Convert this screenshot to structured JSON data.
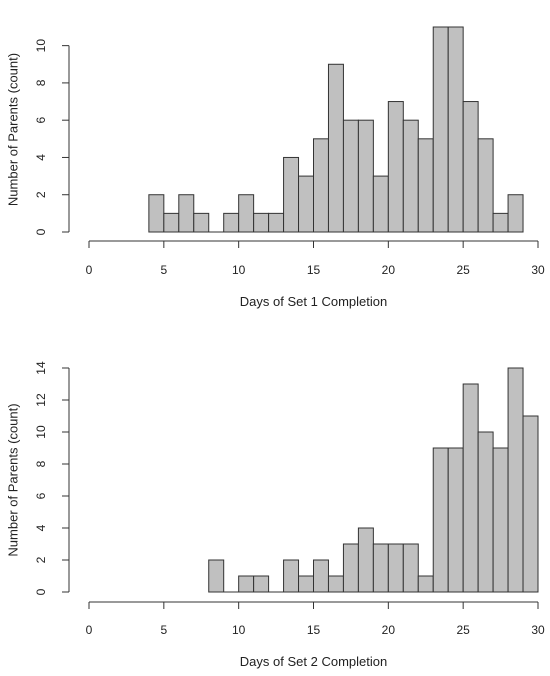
{
  "chart_data": [
    {
      "type": "bar",
      "histogram": true,
      "title": "",
      "xlabel": "Days of Set 1 Completion",
      "ylabel": "Number of Parents (count)",
      "xlim": [
        0,
        30
      ],
      "ylim": [
        0,
        11
      ],
      "xticks": [
        "0",
        "5",
        "10",
        "15",
        "20",
        "25",
        "30"
      ],
      "yticks": [
        "0",
        "2",
        "4",
        "6",
        "8",
        "10"
      ],
      "grid": false,
      "bar_color": "#c0c0c0",
      "bins": [
        {
          "start": 4,
          "end": 5,
          "count": 2
        },
        {
          "start": 5,
          "end": 6,
          "count": 1
        },
        {
          "start": 6,
          "end": 7,
          "count": 2
        },
        {
          "start": 7,
          "end": 8,
          "count": 1
        },
        {
          "start": 8,
          "end": 9,
          "count": 0
        },
        {
          "start": 9,
          "end": 10,
          "count": 1
        },
        {
          "start": 10,
          "end": 11,
          "count": 2
        },
        {
          "start": 11,
          "end": 12,
          "count": 1
        },
        {
          "start": 12,
          "end": 13,
          "count": 1
        },
        {
          "start": 13,
          "end": 14,
          "count": 4
        },
        {
          "start": 14,
          "end": 15,
          "count": 3
        },
        {
          "start": 15,
          "end": 16,
          "count": 5
        },
        {
          "start": 16,
          "end": 17,
          "count": 9
        },
        {
          "start": 17,
          "end": 18,
          "count": 6
        },
        {
          "start": 18,
          "end": 19,
          "count": 6
        },
        {
          "start": 19,
          "end": 20,
          "count": 3
        },
        {
          "start": 20,
          "end": 21,
          "count": 7
        },
        {
          "start": 21,
          "end": 22,
          "count": 6
        },
        {
          "start": 22,
          "end": 23,
          "count": 5
        },
        {
          "start": 23,
          "end": 24,
          "count": 11
        },
        {
          "start": 24,
          "end": 25,
          "count": 11
        },
        {
          "start": 25,
          "end": 26,
          "count": 7
        },
        {
          "start": 26,
          "end": 27,
          "count": 5
        },
        {
          "start": 27,
          "end": 28,
          "count": 1
        },
        {
          "start": 28,
          "end": 29,
          "count": 2
        }
      ]
    },
    {
      "type": "bar",
      "histogram": true,
      "title": "",
      "xlabel": "Days of Set 2 Completion",
      "ylabel": "Number of Parents (count)",
      "xlim": [
        0,
        30
      ],
      "ylim": [
        0,
        14
      ],
      "xticks": [
        "0",
        "5",
        "10",
        "15",
        "20",
        "25",
        "30"
      ],
      "yticks": [
        "0",
        "2",
        "4",
        "6",
        "8",
        "10",
        "12",
        "14"
      ],
      "grid": false,
      "bar_color": "#c0c0c0",
      "bins": [
        {
          "start": 8,
          "end": 9,
          "count": 2
        },
        {
          "start": 9,
          "end": 10,
          "count": 0
        },
        {
          "start": 10,
          "end": 11,
          "count": 1
        },
        {
          "start": 11,
          "end": 12,
          "count": 1
        },
        {
          "start": 12,
          "end": 13,
          "count": 0
        },
        {
          "start": 13,
          "end": 14,
          "count": 2
        },
        {
          "start": 14,
          "end": 15,
          "count": 1
        },
        {
          "start": 15,
          "end": 16,
          "count": 2
        },
        {
          "start": 16,
          "end": 17,
          "count": 1
        },
        {
          "start": 17,
          "end": 18,
          "count": 3
        },
        {
          "start": 18,
          "end": 19,
          "count": 4
        },
        {
          "start": 19,
          "end": 20,
          "count": 3
        },
        {
          "start": 20,
          "end": 21,
          "count": 3
        },
        {
          "start": 21,
          "end": 22,
          "count": 3
        },
        {
          "start": 22,
          "end": 23,
          "count": 1
        },
        {
          "start": 23,
          "end": 24,
          "count": 9
        },
        {
          "start": 24,
          "end": 25,
          "count": 9
        },
        {
          "start": 25,
          "end": 26,
          "count": 13
        },
        {
          "start": 26,
          "end": 27,
          "count": 10
        },
        {
          "start": 27,
          "end": 28,
          "count": 9
        },
        {
          "start": 28,
          "end": 29,
          "count": 14
        },
        {
          "start": 29,
          "end": 30,
          "count": 11
        }
      ]
    }
  ]
}
